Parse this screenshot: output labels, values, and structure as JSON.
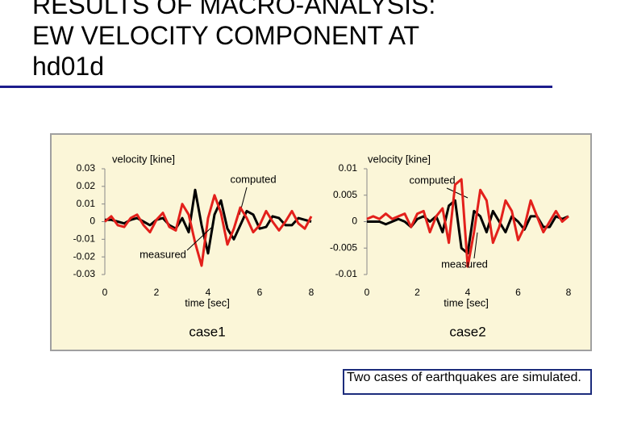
{
  "title_lines": [
    "RESULTS OF MACRO-ANALYSIS:",
    "EW VELOCITY COMPONENT AT",
    "hd01d"
  ],
  "note": "Two cases of earthquakes are simulated.",
  "chart_data": [
    {
      "type": "line",
      "y_label": "velocity [kine]",
      "x_label": "time [sec]",
      "caption": "case1",
      "xlim": [
        0,
        8
      ],
      "xticks": [
        0,
        2,
        4,
        6,
        8
      ],
      "ylim": [
        -0.03,
        0.03
      ],
      "yticks": [
        -0.03,
        -0.02,
        -0.01,
        0,
        0.01,
        0.02,
        0.03
      ],
      "x": [
        0,
        0.25,
        0.5,
        0.75,
        1,
        1.25,
        1.5,
        1.75,
        2,
        2.25,
        2.5,
        2.75,
        3,
        3.25,
        3.5,
        3.75,
        4,
        4.25,
        4.5,
        4.75,
        5,
        5.25,
        5.5,
        5.75,
        6,
        6.25,
        6.5,
        6.75,
        7,
        7.25,
        7.5,
        7.75,
        8
      ],
      "series": [
        {
          "name": "computed",
          "color": "#000000",
          "values": [
            0.001,
            0.001,
            0,
            -0.001,
            0.001,
            0.002,
            0,
            -0.002,
            0.001,
            0.002,
            -0.002,
            -0.004,
            0.002,
            -0.006,
            0.018,
            -0.002,
            -0.018,
            0.004,
            0.012,
            -0.004,
            -0.01,
            -0.002,
            0.006,
            0.004,
            -0.004,
            -0.003,
            0.003,
            0.002,
            -0.002,
            -0.002,
            0.002,
            0.001,
            0
          ]
        },
        {
          "name": "measured",
          "color": "#e3201b",
          "values": [
            0,
            0.003,
            -0.002,
            -0.003,
            0.002,
            0.004,
            -0.002,
            -0.006,
            0.001,
            0.005,
            -0.003,
            -0.005,
            0.01,
            0.004,
            -0.012,
            -0.025,
            0.002,
            0.015,
            0.005,
            -0.013,
            -0.004,
            0.008,
            0.002,
            -0.006,
            -0.002,
            0.006,
            0,
            -0.005,
            0,
            0.006,
            -0.001,
            -0.004,
            0.003
          ]
        }
      ]
    },
    {
      "type": "line",
      "y_label": "velocity [kine]",
      "x_label": "time [sec]",
      "caption": "case2",
      "xlim": [
        0,
        8
      ],
      "xticks": [
        0,
        2,
        4,
        6,
        8
      ],
      "ylim": [
        -0.01,
        0.01
      ],
      "yticks": [
        -0.01,
        -0.005,
        0,
        0.005,
        0.01
      ],
      "x": [
        0,
        0.25,
        0.5,
        0.75,
        1,
        1.25,
        1.5,
        1.75,
        2,
        2.25,
        2.5,
        2.75,
        3,
        3.25,
        3.5,
        3.75,
        4,
        4.25,
        4.5,
        4.75,
        5,
        5.25,
        5.5,
        5.75,
        6,
        6.25,
        6.5,
        6.75,
        7,
        7.25,
        7.5,
        7.75,
        8
      ],
      "series": [
        {
          "name": "computed",
          "color": "#000000",
          "values": [
            0,
            0,
            0,
            -0.0005,
            0,
            0.0005,
            0,
            -0.001,
            0.0005,
            0.001,
            0,
            0.001,
            -0.002,
            0.003,
            0.004,
            -0.005,
            -0.006,
            0.002,
            0.001,
            -0.002,
            0.002,
            0,
            -0.002,
            0.001,
            0,
            -0.0015,
            0.001,
            0.001,
            -0.001,
            -0.001,
            0.001,
            0.0005,
            0.001
          ]
        },
        {
          "name": "measured",
          "color": "#e3201b",
          "values": [
            0.0005,
            0.001,
            0.0005,
            0.0015,
            0.0005,
            0.001,
            0.0015,
            -0.001,
            0.0015,
            0.002,
            -0.002,
            0.001,
            0.0025,
            -0.004,
            0.007,
            0.008,
            -0.0085,
            -0.002,
            0.006,
            0.004,
            -0.004,
            -0.001,
            0.004,
            0.002,
            -0.0035,
            -0.001,
            0.004,
            0.001,
            -0.002,
            0,
            0.002,
            0,
            0.001
          ]
        }
      ]
    }
  ]
}
